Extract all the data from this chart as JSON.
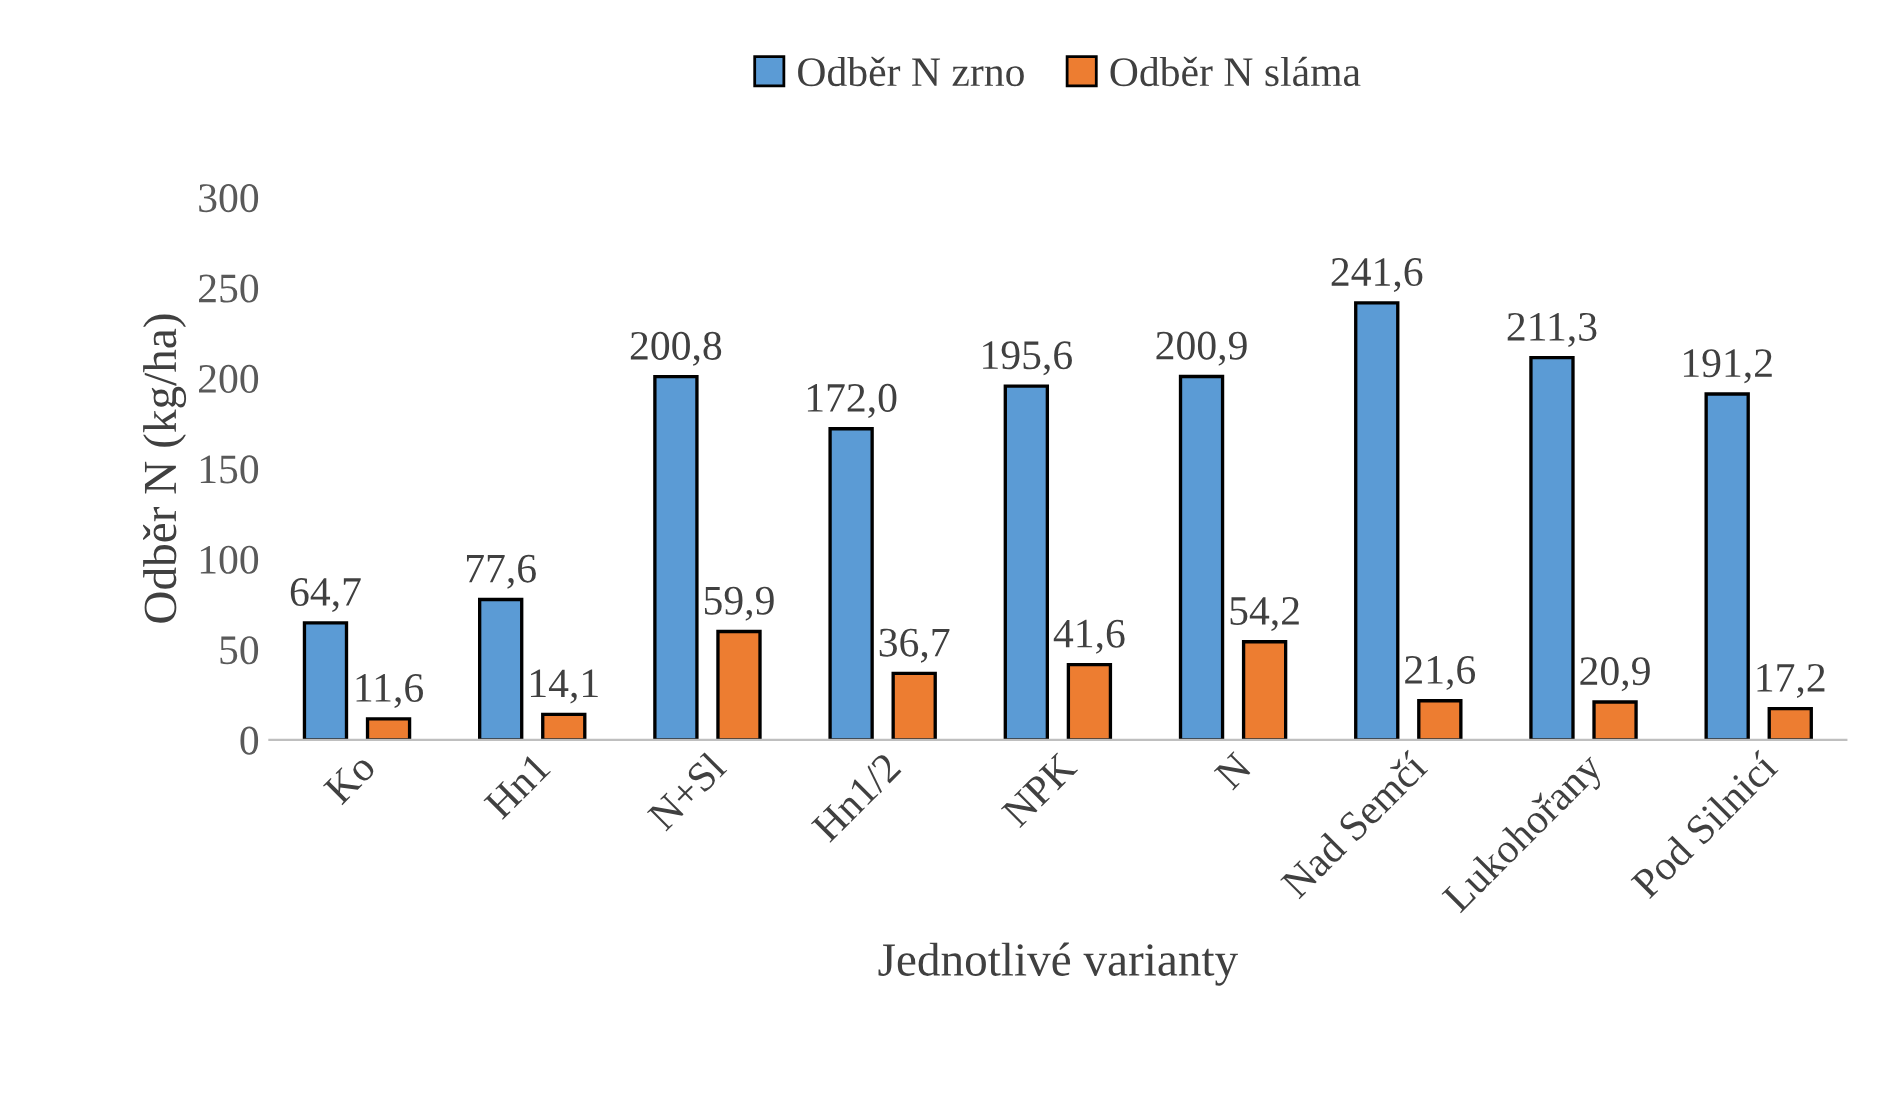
{
  "chart_data": {
    "type": "bar",
    "categories": [
      "Ko",
      "Hn1",
      "N+Sl",
      "Hn1/2",
      "NPK",
      "N",
      "Nad Semčí",
      "Lukohořany",
      "Pod Silnicí"
    ],
    "series": [
      {
        "name": "Odběr N zrno",
        "color": "#5b9bd5",
        "values": [
          64.7,
          77.6,
          200.8,
          172.0,
          195.6,
          200.9,
          241.6,
          211.3,
          191.2
        ],
        "value_labels": [
          "64,7",
          "77,6",
          "200,8",
          "172,0",
          "195,6",
          "200,9",
          "241,6",
          "211,3",
          "191,2"
        ]
      },
      {
        "name": "Odběr N sláma",
        "color": "#ed7d31",
        "values": [
          11.6,
          14.1,
          59.9,
          36.7,
          41.6,
          54.2,
          21.6,
          20.9,
          17.2
        ],
        "value_labels": [
          "11,6",
          "14,1",
          "59,9",
          "36,7",
          "41,6",
          "54,2",
          "21,6",
          "20,9",
          "17,2"
        ]
      }
    ],
    "xlabel": "Jednotlivé varianty",
    "ylabel": "Odběr N (kg/ha)",
    "ylim": [
      0,
      300
    ],
    "yticks": [
      0,
      50,
      100,
      150,
      200,
      250,
      300
    ],
    "grid": false,
    "legend": "top"
  }
}
